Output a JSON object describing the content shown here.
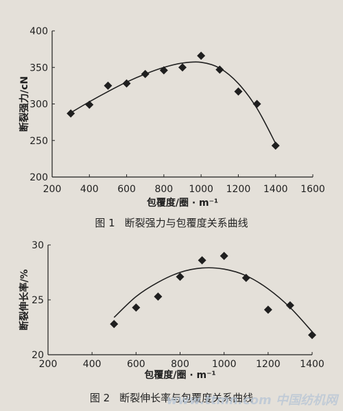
{
  "chart_data": [
    {
      "type": "scatter",
      "caption_number": "图 1",
      "caption_text": "断裂强力与包覆度关系曲线",
      "xlabel": "包覆度/圈 · m⁻¹",
      "ylabel": "断裂强力/cN",
      "xlim": [
        200,
        1600
      ],
      "ylim": [
        200,
        400
      ],
      "x_ticks": [
        200,
        400,
        600,
        800,
        1000,
        1200,
        1400,
        1600
      ],
      "y_ticks": [
        200,
        250,
        300,
        350,
        400
      ],
      "series": [
        {
          "x": [
            300,
            400,
            500,
            600,
            700,
            800,
            900,
            1000,
            1100,
            1200,
            1300,
            1400
          ],
          "y": [
            287,
            299,
            325,
            328,
            341,
            346,
            350,
            366,
            347,
            317,
            300,
            243
          ]
        }
      ],
      "trend_line": {
        "x": [
          300,
          400,
          500,
          600,
          700,
          800,
          900,
          1000,
          1100,
          1200,
          1300,
          1400
        ],
        "y": [
          288,
          303,
          317,
          330,
          341,
          350,
          356,
          357,
          349,
          328,
          294,
          246
        ]
      },
      "marker": "diamond",
      "grid": false
    },
    {
      "type": "scatter",
      "caption_number": "图 2",
      "caption_text": "断裂伸长率与包覆度关系曲线",
      "xlabel": "包覆度/圈 · m⁻¹",
      "ylabel": "断裂伸长率/%",
      "xlim": [
        200,
        1400
      ],
      "ylim": [
        20,
        30
      ],
      "x_ticks": [
        200,
        400,
        600,
        800,
        1000,
        1200,
        1400
      ],
      "y_ticks": [
        20,
        25,
        30
      ],
      "series": [
        {
          "x": [
            500,
            600,
            700,
            800,
            900,
            1000,
            1100,
            1200,
            1300,
            1400
          ],
          "y": [
            22.8,
            24.3,
            25.3,
            27.1,
            28.6,
            29.0,
            27.0,
            24.1,
            24.5,
            21.8
          ]
        }
      ],
      "trend_line": {
        "x": [
          500,
          600,
          700,
          800,
          900,
          1000,
          1100,
          1200,
          1300,
          1400
        ],
        "y": [
          23.4,
          25.3,
          26.6,
          27.5,
          27.9,
          27.8,
          27.2,
          26.0,
          24.3,
          22.1
        ]
      },
      "marker": "diamond",
      "grid": false
    }
  ],
  "watermark": "www.ttmn.com 中国纺机网",
  "colors": {
    "background": "#e4e0d9",
    "ink": "#1f1f1f"
  }
}
